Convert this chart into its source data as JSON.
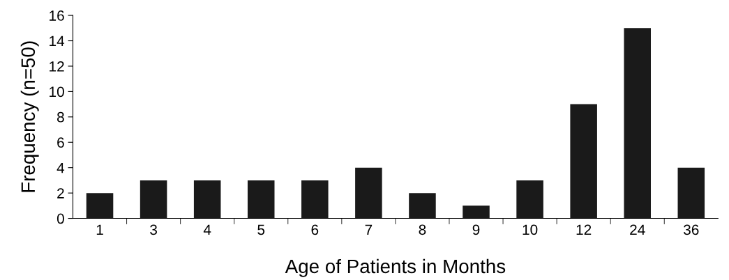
{
  "chart_data": {
    "type": "bar",
    "xlabel": "Age of Patients in Months",
    "ylabel": "Frequency (n=50)",
    "categories": [
      "1",
      "3",
      "4",
      "5",
      "6",
      "7",
      "8",
      "9",
      "10",
      "12",
      "24",
      "36"
    ],
    "values": [
      2,
      3,
      3,
      3,
      3,
      4,
      2,
      1,
      3,
      9,
      15,
      4
    ],
    "color": "#1a1a1a",
    "ylim": [
      0,
      16
    ],
    "yticks": [
      0,
      2,
      4,
      6,
      8,
      10,
      12,
      14,
      16
    ],
    "grid": false
  }
}
